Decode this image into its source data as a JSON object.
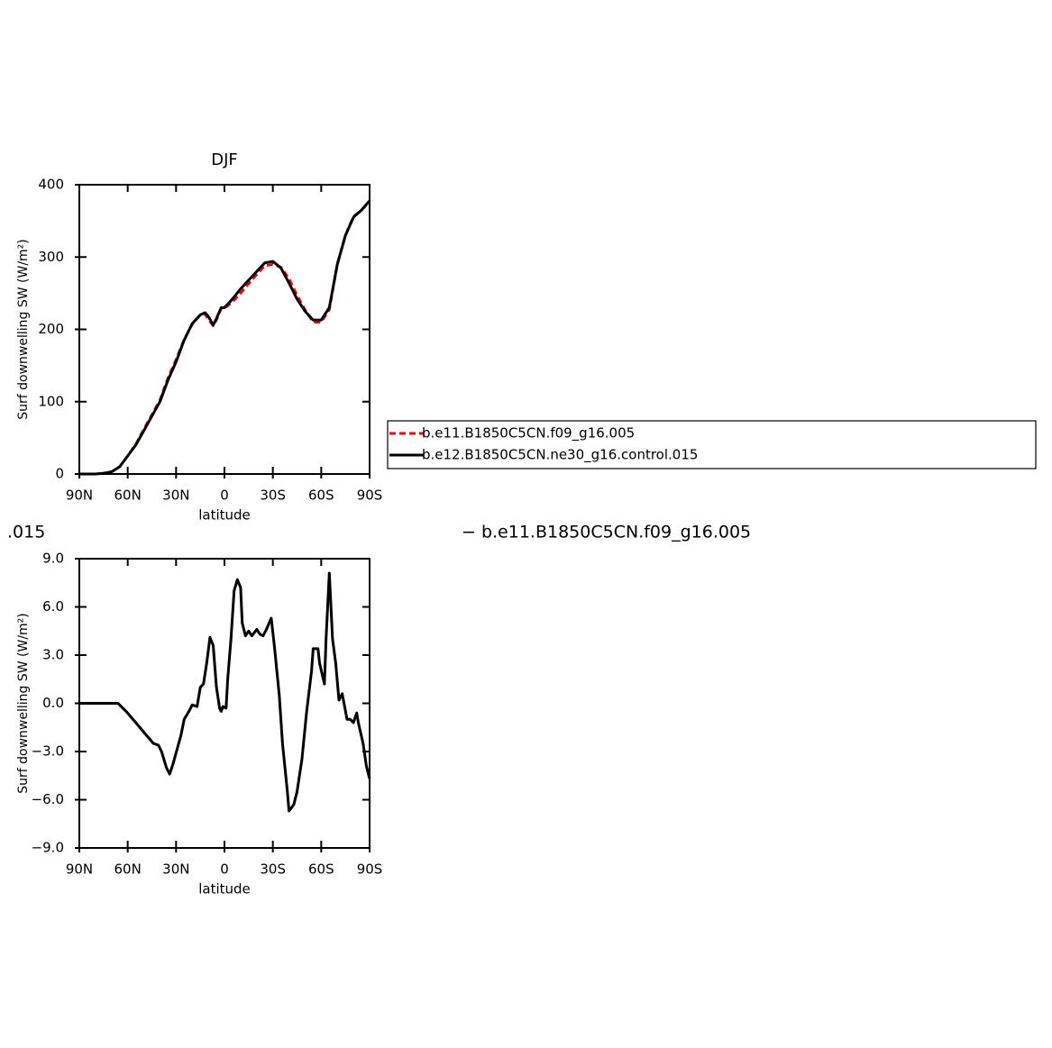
{
  "chart_data": [
    {
      "type": "line",
      "title": "DJF",
      "x_label": "latitude",
      "y_label": "Surf downwelling SW (W/m²)",
      "x": [
        90,
        85,
        80,
        75,
        70,
        65,
        60,
        55,
        50,
        45,
        40,
        35,
        30,
        25,
        20,
        15,
        12,
        10,
        7,
        5,
        2,
        0,
        -5,
        -10,
        -15,
        -20,
        -25,
        -30,
        -35,
        -40,
        -45,
        -50,
        -55,
        -60,
        -65,
        -70,
        -75,
        -80,
        -85,
        -90
      ],
      "series": [
        {
          "name": "b.e11.B1850C5CN.f09_g16.005",
          "color": "#ff0000",
          "dash": true,
          "values": [
            0,
            0,
            0,
            1,
            3,
            10,
            25,
            41,
            62,
            82,
            102,
            133,
            158,
            186,
            207,
            220,
            221,
            214,
            205,
            213,
            229,
            229,
            238,
            250,
            263,
            276,
            288,
            290,
            286,
            270,
            247,
            227,
            210,
            210,
            227,
            290,
            330,
            356,
            365,
            377
          ]
        },
        {
          "name": "b.e12.B1850C5CN.ne30_g16.control.015",
          "color": "#000000",
          "dash": false,
          "values": [
            0,
            0,
            0,
            1,
            3,
            10,
            25,
            40,
            60,
            80,
            100,
            130,
            155,
            185,
            208,
            220,
            223,
            218,
            206,
            215,
            230,
            230,
            242,
            256,
            268,
            280,
            292,
            294,
            285,
            264,
            242,
            225,
            213,
            213,
            230,
            290,
            330,
            355,
            365,
            378
          ]
        }
      ],
      "xlim": [
        90,
        -90
      ],
      "xticks": [
        {
          "value": 90,
          "label": "90N"
        },
        {
          "value": 60,
          "label": "60N"
        },
        {
          "value": 30,
          "label": "30N"
        },
        0,
        {
          "value": -30,
          "label": "30S"
        },
        {
          "value": -60,
          "label": "60S"
        },
        {
          "value": -90,
          "label": "90S"
        }
      ],
      "ylim": [
        0,
        400
      ],
      "yticks": [
        0,
        100,
        200,
        300,
        400
      ],
      "legend": "right"
    },
    {
      "type": "line",
      "x_label": "latitude",
      "y_label": "Surf downwelling SW (W/m²)",
      "annotations": [
        ".015",
        "− b.e11.B1850C5CN.f09_g16.005"
      ],
      "x": [
        90,
        80,
        70,
        66,
        61,
        55,
        50,
        44,
        41,
        39,
        36,
        34,
        32,
        27,
        25,
        22,
        20,
        17,
        15,
        13,
        11,
        9,
        7,
        5,
        3,
        2,
        1,
        -1,
        -2,
        -4,
        -6,
        -8,
        -10,
        -11,
        -13,
        -15,
        -17,
        -20,
        -22,
        -24,
        -26,
        -29,
        -31,
        -34,
        -36,
        -39,
        -40,
        -43,
        -45,
        -48,
        -51,
        -54,
        -55,
        -58,
        -59,
        -62,
        -63,
        -65,
        -67,
        -69,
        -71,
        -73,
        -76,
        -78,
        -80,
        -82,
        -83,
        -86,
        -88,
        -90
      ],
      "series": [
        {
          "color": "#000000",
          "dash": false,
          "values": [
            0,
            0,
            0,
            0,
            -0.5,
            -1.2,
            -1.8,
            -2.5,
            -2.6,
            -3.0,
            -4.0,
            -4.4,
            -3.8,
            -2.0,
            -1.0,
            -0.5,
            -0.1,
            -0.2,
            1.0,
            1.2,
            2.5,
            4.1,
            3.6,
            1.0,
            -0.3,
            -0.5,
            -0.2,
            -0.3,
            1.5,
            4.0,
            7.0,
            7.7,
            7.2,
            5.0,
            4.2,
            4.5,
            4.2,
            4.6,
            4.3,
            4.2,
            4.6,
            5.3,
            3.5,
            0.5,
            -2.5,
            -5.5,
            -6.7,
            -6.3,
            -5.5,
            -3.5,
            -0.5,
            2.0,
            3.4,
            3.4,
            2.5,
            1.2,
            4.0,
            8.1,
            4.0,
            2.5,
            0.2,
            0.6,
            -1.0,
            -1.0,
            -1.2,
            -0.6,
            -1.2,
            -2.5,
            -3.9,
            -4.7
          ]
        }
      ],
      "xlim": [
        90,
        -90
      ],
      "xticks": [
        {
          "value": 90,
          "label": "90N"
        },
        {
          "value": 60,
          "label": "60N"
        },
        {
          "value": 30,
          "label": "30N"
        },
        0,
        {
          "value": -30,
          "label": "30S"
        },
        {
          "value": -60,
          "label": "60S"
        },
        {
          "value": -90,
          "label": "90S"
        }
      ],
      "ylim": [
        -9,
        9
      ],
      "yticks": [
        {
          "value": -9,
          "label": "−9.0"
        },
        {
          "value": -6,
          "label": "−6.0"
        },
        {
          "value": -3,
          "label": "−3.0"
        },
        {
          "value": 0,
          "label": "0.0"
        },
        {
          "value": 3,
          "label": "3.0"
        },
        {
          "value": 6,
          "label": "6.0"
        },
        {
          "value": 9,
          "label": "9.0"
        }
      ]
    }
  ]
}
